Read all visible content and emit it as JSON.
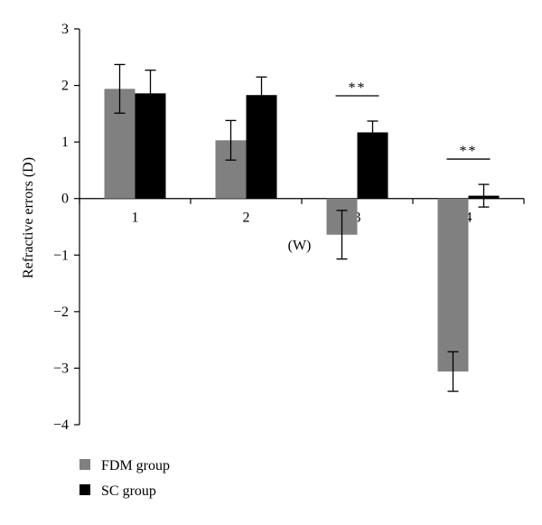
{
  "chart_data": {
    "type": "bar",
    "title": "",
    "xlabel": "(W)",
    "ylabel": "Refractive errors (D)",
    "ylim": [
      -4,
      3
    ],
    "yticks": [
      "3",
      "2",
      "1",
      "0",
      "−1",
      "−2",
      "−3",
      "−4"
    ],
    "ytick_values": [
      3,
      2,
      1,
      0,
      -1,
      -2,
      -3,
      -4
    ],
    "categories": [
      "1",
      "2",
      "3",
      "4"
    ],
    "series": [
      {
        "name": "FDM group",
        "color": "#808080",
        "values": [
          1.94,
          1.03,
          -0.64,
          -3.06
        ],
        "errors": [
          0.43,
          0.35,
          0.43,
          0.35
        ]
      },
      {
        "name": "SC group",
        "color": "#000000",
        "values": [
          1.86,
          1.83,
          1.17,
          0.05
        ],
        "errors": [
          0.41,
          0.32,
          0.2,
          0.2
        ]
      }
    ],
    "significance": [
      {
        "category": "3",
        "label": "**"
      },
      {
        "category": "4",
        "label": "**"
      }
    ],
    "legend": {
      "position": "bottom-left"
    }
  }
}
